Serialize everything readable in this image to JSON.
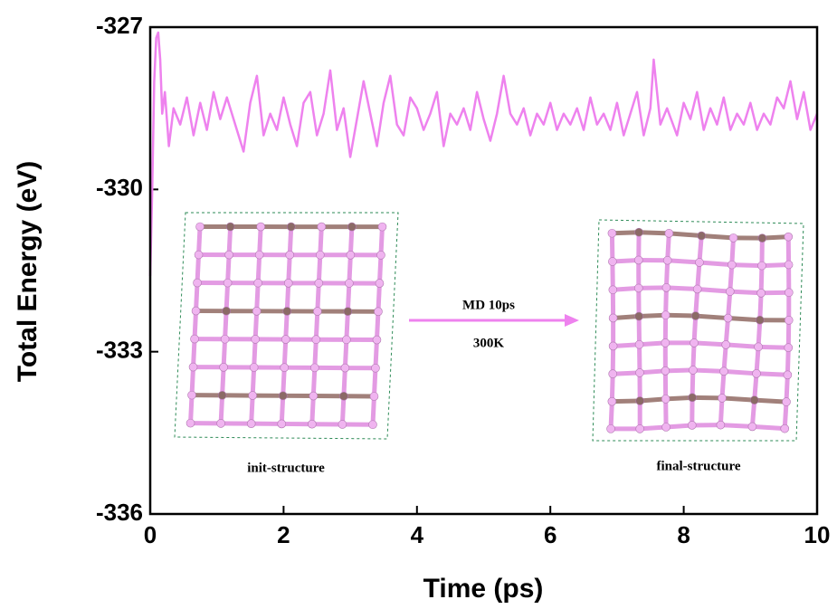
{
  "chart_data": {
    "type": "line",
    "x_label": "Time (ps)",
    "y_label": "Total Energy (eV)",
    "xlim": [
      0,
      10
    ],
    "xticks": [
      0,
      2,
      4,
      6,
      8,
      10
    ],
    "ylim": [
      -336,
      -327
    ],
    "yticks": [
      -336,
      -333,
      -330,
      -327
    ],
    "annotations": [
      "MD 10ps",
      "300K",
      "init-structure",
      "final-structure"
    ],
    "x": [
      0,
      0.03,
      0.06,
      0.09,
      0.12,
      0.15,
      0.18,
      0.22,
      0.28,
      0.35,
      0.45,
      0.55,
      0.65,
      0.75,
      0.85,
      0.95,
      1.05,
      1.15,
      1.3,
      1.4,
      1.5,
      1.6,
      1.7,
      1.8,
      1.9,
      2.0,
      2.1,
      2.2,
      2.3,
      2.4,
      2.5,
      2.6,
      2.7,
      2.8,
      2.9,
      3.0,
      3.1,
      3.2,
      3.3,
      3.4,
      3.5,
      3.6,
      3.7,
      3.8,
      3.9,
      4.0,
      4.1,
      4.2,
      4.3,
      4.4,
      4.5,
      4.6,
      4.7,
      4.8,
      4.9,
      5.0,
      5.1,
      5.2,
      5.3,
      5.4,
      5.5,
      5.6,
      5.7,
      5.8,
      5.9,
      6.0,
      6.1,
      6.2,
      6.3,
      6.4,
      6.5,
      6.6,
      6.7,
      6.8,
      6.9,
      7.0,
      7.1,
      7.2,
      7.3,
      7.4,
      7.5,
      7.55,
      7.65,
      7.75,
      7.9,
      8.0,
      8.1,
      8.2,
      8.3,
      8.4,
      8.5,
      8.6,
      8.7,
      8.8,
      8.9,
      9.0,
      9.1,
      9.2,
      9.3,
      9.4,
      9.5,
      9.6,
      9.7,
      9.8,
      9.9,
      10.0
    ],
    "series": [
      {
        "color": "#ee82ee",
        "values": [
          -331.6,
          -330.0,
          -328.0,
          -327.2,
          -327.1,
          -327.6,
          -328.6,
          -328.2,
          -329.2,
          -328.5,
          -328.8,
          -328.3,
          -329.0,
          -328.4,
          -328.9,
          -328.2,
          -328.7,
          -328.3,
          -328.9,
          -329.3,
          -328.4,
          -327.9,
          -329.0,
          -328.6,
          -328.9,
          -328.3,
          -328.8,
          -329.2,
          -328.4,
          -328.2,
          -329.0,
          -328.6,
          -327.8,
          -328.9,
          -328.5,
          -329.4,
          -328.7,
          -328.0,
          -328.6,
          -329.2,
          -328.4,
          -327.9,
          -328.8,
          -329.0,
          -328.3,
          -328.5,
          -328.9,
          -328.6,
          -328.2,
          -329.2,
          -328.6,
          -328.8,
          -328.5,
          -328.9,
          -328.2,
          -328.7,
          -329.1,
          -328.6,
          -327.9,
          -328.6,
          -328.8,
          -328.5,
          -329.0,
          -328.6,
          -328.8,
          -328.4,
          -328.9,
          -328.6,
          -328.8,
          -328.5,
          -328.9,
          -328.3,
          -328.8,
          -328.6,
          -328.9,
          -328.4,
          -329.0,
          -328.6,
          -328.2,
          -329.0,
          -328.5,
          -327.6,
          -328.8,
          -328.5,
          -329.0,
          -328.4,
          -328.7,
          -328.2,
          -328.9,
          -328.5,
          -328.8,
          -328.3,
          -328.9,
          -328.6,
          -328.8,
          -328.4,
          -328.9,
          -328.6,
          -328.8,
          -328.3,
          -328.5,
          -328.0,
          -328.7,
          -328.2,
          -328.9,
          -328.6
        ]
      }
    ]
  }
}
